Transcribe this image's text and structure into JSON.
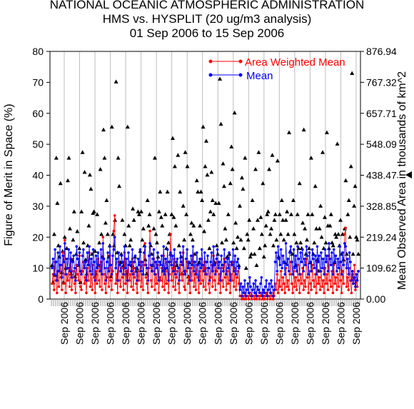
{
  "chart_data": {
    "type": "scatter",
    "title_lines": [
      "NATIONAL OCEANIC ATMOSPHERIC ADMINISTRATION",
      "HMS vs. HYSPLIT (20 ug/m3 analysis)",
      "01 Sep 2006 to 15 Sep 2006"
    ],
    "ylabel_left": "Figure of Merit in Space (%)",
    "ylabel_right": "Mean Observed Area in thousands of km^2",
    "ylim_left": [
      0,
      80
    ],
    "yticks_left": [
      "0",
      "10",
      "20",
      "30",
      "40",
      "50",
      "60",
      "70",
      "80"
    ],
    "ylim_right": [
      0,
      876.94
    ],
    "yticks_right": [
      "0.00",
      "109.62",
      "219.24",
      "328.85",
      "438.47",
      "548.09",
      "657.71",
      "767.32",
      "876.94"
    ],
    "xtick_labels": [
      "Sep 2006",
      "Sep 2006",
      "Sep 2006",
      "Sep 2006",
      "Sep 2006",
      "Sep 2006",
      "Sep 2006",
      "Sep 2006",
      "Sep 2006",
      "Sep 2006",
      "Sep 2006",
      "Sep 2006",
      "Sep 2006",
      "Sep 2006",
      "Sep 2006",
      "Sep 2006",
      "Sep 2006",
      "Sep 2006",
      "Sep 2006",
      "Sep 2006"
    ],
    "legend": {
      "placement": "top-right",
      "entries": [
        {
          "name": "Area Weighted Mean",
          "color": "#ff0000"
        },
        {
          "name": "Mean",
          "color": "#0000ff"
        }
      ]
    },
    "series": [
      {
        "name": "Area Weighted Mean",
        "color": "#ff0000",
        "values": [
          5,
          8,
          3,
          12,
          6,
          2,
          9,
          4,
          11,
          7,
          3,
          15,
          5,
          19,
          2,
          8,
          6,
          10,
          4,
          13,
          3,
          7,
          9,
          5,
          2,
          11,
          8,
          6,
          14,
          4,
          3,
          9,
          12,
          5,
          7,
          2,
          10,
          6,
          15,
          4,
          8,
          3,
          11,
          7,
          2,
          9,
          5,
          13,
          6,
          4,
          12,
          3,
          20,
          8,
          5,
          2,
          7,
          10,
          4,
          14,
          6,
          3,
          9,
          22,
          27,
          5,
          8,
          2,
          12,
          6,
          4,
          10,
          7,
          3,
          15,
          5,
          9,
          2,
          11,
          6,
          8,
          4,
          13,
          3,
          7,
          10,
          5,
          2,
          9,
          6,
          12,
          4,
          8,
          3,
          11,
          18,
          7,
          5,
          2,
          10,
          22,
          6,
          4,
          9,
          13,
          3,
          8,
          5,
          11,
          2,
          7,
          6,
          10,
          4,
          14,
          3,
          9,
          5,
          12,
          2,
          8,
          21,
          6,
          10,
          4,
          13,
          3,
          7,
          9,
          5,
          2,
          11,
          8,
          6,
          15,
          4,
          3,
          9,
          12,
          5,
          7,
          2,
          10,
          6,
          14,
          4,
          8,
          3,
          11,
          7,
          2,
          9,
          5,
          13,
          6,
          4,
          12,
          3,
          8,
          10,
          5,
          2,
          7,
          11,
          4,
          14,
          6,
          3,
          9,
          12,
          5,
          8,
          2,
          10,
          6,
          4,
          13,
          7,
          3,
          9,
          5,
          11,
          2,
          8,
          6,
          12,
          4,
          10,
          3,
          7,
          9,
          5,
          1,
          1,
          0,
          1,
          0,
          2,
          0,
          1,
          1,
          0,
          2,
          1,
          0,
          1,
          1,
          0,
          2,
          0,
          1,
          1,
          0,
          1,
          2,
          0,
          1,
          0,
          1,
          2,
          0,
          1,
          1,
          0,
          2,
          1,
          0,
          1,
          5,
          3,
          8,
          2,
          6,
          4,
          9,
          3,
          7,
          5,
          2,
          10,
          4,
          6,
          3,
          8,
          12,
          5,
          2,
          9,
          4,
          7,
          3,
          11,
          6,
          2,
          8,
          5,
          10,
          3,
          6,
          4,
          13,
          7,
          2,
          9,
          5,
          3,
          11,
          6,
          4,
          8,
          2,
          12,
          5,
          7,
          3,
          9,
          4,
          6,
          2,
          10,
          5,
          8,
          3,
          14,
          6,
          4,
          9,
          2,
          11,
          5,
          7,
          3,
          8,
          4,
          12,
          6,
          2,
          9,
          5,
          21,
          23,
          4,
          7,
          3,
          10,
          6,
          2,
          8,
          5,
          11,
          3,
          6,
          4,
          9
        ]
      },
      {
        "name": "Mean",
        "color": "#0000ff",
        "values": [
          10,
          13,
          8,
          16,
          12,
          6,
          15,
          9,
          17,
          11,
          7,
          14,
          12,
          18,
          8,
          13,
          10,
          16,
          9,
          15,
          7,
          12,
          14,
          10,
          6,
          17,
          13,
          11,
          15,
          9,
          8,
          14,
          16,
          10,
          12,
          6,
          15,
          11,
          17,
          9,
          13,
          8,
          16,
          12,
          6,
          14,
          10,
          15,
          11,
          9,
          16,
          8,
          18,
          13,
          10,
          6,
          12,
          15,
          9,
          17,
          11,
          8,
          14,
          16,
          20,
          10,
          13,
          6,
          15,
          11,
          9,
          14,
          12,
          8,
          17,
          10,
          13,
          6,
          15,
          11,
          12,
          9,
          16,
          8,
          12,
          14,
          10,
          6,
          13,
          11,
          16,
          9,
          12,
          8,
          15,
          17,
          11,
          10,
          6,
          14,
          18,
          11,
          9,
          13,
          16,
          8,
          12,
          10,
          15,
          6,
          12,
          11,
          14,
          9,
          17,
          8,
          13,
          10,
          16,
          6,
          12,
          15,
          11,
          14,
          9,
          16,
          8,
          12,
          13,
          10,
          6,
          15,
          12,
          11,
          17,
          9,
          8,
          13,
          16,
          10,
          12,
          6,
          14,
          11,
          17,
          9,
          12,
          8,
          15,
          11,
          6,
          13,
          10,
          16,
          11,
          9,
          15,
          8,
          12,
          14,
          10,
          6,
          12,
          15,
          9,
          17,
          11,
          8,
          13,
          16,
          10,
          12,
          6,
          14,
          11,
          9,
          16,
          12,
          8,
          13,
          10,
          15,
          6,
          12,
          11,
          16,
          9,
          14,
          8,
          12,
          13,
          10,
          3,
          5,
          1,
          4,
          2,
          6,
          1,
          3,
          5,
          2,
          7,
          4,
          1,
          3,
          5,
          2,
          6,
          1,
          4,
          3,
          2,
          5,
          7,
          1,
          3,
          2,
          4,
          6,
          1,
          3,
          5,
          2,
          6,
          4,
          1,
          3,
          12,
          15,
          9,
          17,
          13,
          11,
          16,
          10,
          14,
          12,
          8,
          18,
          11,
          13,
          9,
          15,
          17,
          12,
          8,
          16,
          10,
          14,
          9,
          17,
          13,
          8,
          15,
          12,
          16,
          9,
          13,
          11,
          17,
          14,
          8,
          15,
          12,
          9,
          16,
          13,
          10,
          14,
          8,
          17,
          12,
          14,
          9,
          15,
          10,
          13,
          8,
          16,
          12,
          14,
          9,
          18,
          13,
          11,
          15,
          8,
          16,
          12,
          14,
          9,
          13,
          10,
          17,
          12,
          8,
          15,
          11,
          18,
          17,
          10,
          13,
          8,
          15,
          12,
          6,
          9,
          5,
          7,
          4,
          8,
          6,
          9
        ]
      },
      {
        "name": "Mean Observed Area",
        "axis": "right",
        "marker": "triangle",
        "color": "#000000",
        "values": [
          120,
          60,
          230,
          85,
          500,
          340,
          190,
          150,
          410,
          95,
          170,
          60,
          220,
          110,
          180,
          420,
          500,
          250,
          90,
          140,
          210,
          310,
          80,
          160,
          240,
          120,
          180,
          60,
          310,
          520,
          200,
          450,
          140,
          90,
          190,
          260,
          440,
          390,
          160,
          305,
          310,
          170,
          90,
          300,
          120,
          200,
          460,
          230,
          150,
          600,
          500,
          270,
          350,
          230,
          150,
          190,
          80,
          610,
          230,
          190,
          280,
          770,
          165,
          500,
          400,
          130,
          160,
          280,
          120,
          230,
          190,
          90,
          610,
          260,
          190,
          210,
          120,
          320,
          280,
          150,
          100,
          110,
          310,
          300,
          170,
          310,
          210,
          250,
          190,
          140,
          90,
          350,
          260,
          300,
          190,
          160,
          120,
          250,
          500,
          230,
          200,
          150,
          310,
          380,
          290,
          260,
          100,
          110,
          300,
          180,
          380,
          200,
          230,
          160,
          300,
          570,
          290,
          470,
          260,
          120,
          510,
          190,
          380,
          150,
          90,
          330,
          210,
          520,
          300,
          470,
          80,
          130,
          230,
          270,
          210,
          260,
          160,
          90,
          420,
          380,
          130,
          260,
          380,
          350,
          610,
          240,
          470,
          560,
          440,
          280,
          180,
          310,
          450,
          350,
          300,
          130,
          340,
          190,
          160,
          340,
          780,
          620,
          200,
          480,
          400,
          250,
          210,
          150,
          300,
          160,
          410,
          540,
          460,
          200,
          660,
          270,
          180,
          220,
          120,
          330,
          210,
          430,
          390,
          180,
          500,
          110,
          230,
          210,
          280,
          150,
          160,
          350,
          250,
          160,
          460,
          120,
          280,
          520,
          180,
          290,
          230,
          410,
          150,
          190,
          260,
          300,
          310,
          460,
          230,
          250,
          510,
          190,
          280,
          300,
          210,
          490,
          150,
          300,
          230,
          350,
          280,
          210,
          130,
          280,
          310,
          230,
          590,
          170,
          300,
          160,
          350,
          230,
          120,
          200,
          300,
          180,
          410,
          200,
          180,
          270,
          600,
          250,
          160,
          210,
          300,
          180,
          130,
          500,
          300,
          160,
          200,
          400,
          250,
          140,
          100,
          250,
          330,
          220,
          520,
          180,
          290,
          200,
          590,
          260,
          180,
          260,
          300,
          200,
          190,
          130,
          230,
          220,
          550,
          230,
          190,
          280,
          160,
          230,
          140,
          250,
          420,
          160,
          300,
          350,
          220,
          470,
          800,
          160,
          330,
          400,
          220,
          210,
          160
        ]
      }
    ]
  }
}
